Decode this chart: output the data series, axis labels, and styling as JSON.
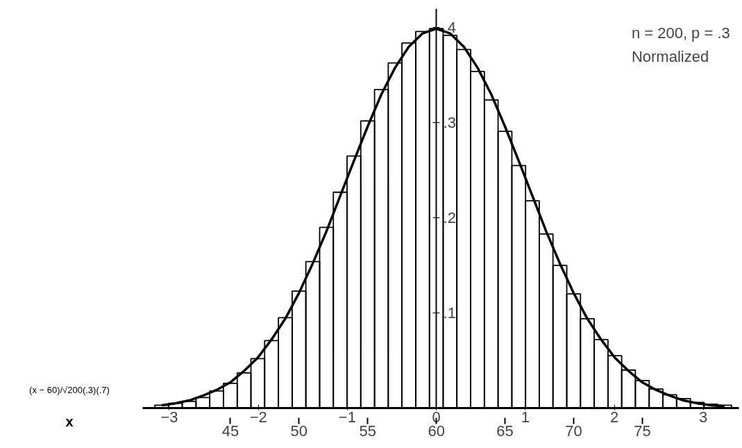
{
  "chart_data": {
    "type": "histogram",
    "xlabel": "(x − 60)/√200(.3)(.7)",
    "x2label": "x",
    "annotations": [
      "n = 200, p = .3",
      "Normalized"
    ],
    "xlim": [
      -3.3,
      3.4
    ],
    "xticks": [
      -3,
      -2,
      -1,
      0,
      1,
      2,
      3
    ],
    "ylim": [
      0,
      0.42
    ],
    "yticks": [
      {
        "value": 0.1,
        "label": ".1"
      },
      {
        "value": 0.2,
        "label": ".2"
      },
      {
        "value": 0.3,
        "label": ".3"
      },
      {
        "value": 0.4,
        "label": ".4"
      }
    ],
    "x2lim": [
      38.61,
      82.03
    ],
    "x2ticks": [
      45,
      50,
      55,
      60,
      65,
      70,
      75
    ],
    "series": [
      {
        "color": "#000000",
        "bins": [
          -3.163,
          -3.009,
          -2.855,
          -2.7,
          -2.546,
          -2.392,
          -2.237,
          -2.083,
          -1.929,
          -1.774,
          -1.62,
          -1.466,
          -1.311,
          -1.157,
          -1.003,
          -0.849,
          -0.694,
          -0.54,
          -0.386,
          -0.231,
          -0.077,
          0.077,
          0.231,
          0.386,
          0.54,
          0.694,
          0.849,
          1.003,
          1.157,
          1.311,
          1.466,
          1.62,
          1.774,
          1.929,
          2.083,
          2.237,
          2.392,
          2.546,
          2.7,
          2.855,
          3.009,
          3.163,
          3.318
        ],
        "values": [
          0.003,
          0.005,
          0.007,
          0.011,
          0.018,
          0.026,
          0.037,
          0.052,
          0.071,
          0.095,
          0.123,
          0.154,
          0.19,
          0.227,
          0.265,
          0.302,
          0.335,
          0.363,
          0.384,
          0.396,
          0.399,
          0.392,
          0.377,
          0.354,
          0.324,
          0.291,
          0.255,
          0.218,
          0.183,
          0.15,
          0.12,
          0.094,
          0.072,
          0.055,
          0.04,
          0.029,
          0.02,
          0.014,
          0.01,
          0.006,
          0.004,
          0.003
        ]
      },
      {
        "type": "line",
        "color": "#000000",
        "x": [
          -3.086,
          -2.932,
          -2.778,
          -2.623,
          -2.469,
          -2.315,
          -2.16,
          -2.006,
          -1.852,
          -1.697,
          -1.543,
          -1.389,
          -1.234,
          -1.08,
          -0.926,
          -0.772,
          -0.617,
          -0.463,
          -0.309,
          -0.154,
          0,
          0.154,
          0.309,
          0.463,
          0.617,
          0.772,
          0.926,
          1.08,
          1.234,
          1.389,
          1.543,
          1.697,
          1.852,
          2.006,
          2.16,
          2.315,
          2.469,
          2.623,
          2.778,
          2.932,
          3.086,
          3.24
        ],
        "values": [
          0.003,
          0.005,
          0.008,
          0.013,
          0.019,
          0.027,
          0.039,
          0.053,
          0.072,
          0.094,
          0.121,
          0.152,
          0.186,
          0.223,
          0.26,
          0.296,
          0.33,
          0.358,
          0.38,
          0.394,
          0.399,
          0.394,
          0.38,
          0.358,
          0.33,
          0.296,
          0.26,
          0.223,
          0.186,
          0.152,
          0.121,
          0.094,
          0.072,
          0.053,
          0.039,
          0.027,
          0.019,
          0.013,
          0.008,
          0.005,
          0.003,
          0.002
        ]
      }
    ]
  }
}
